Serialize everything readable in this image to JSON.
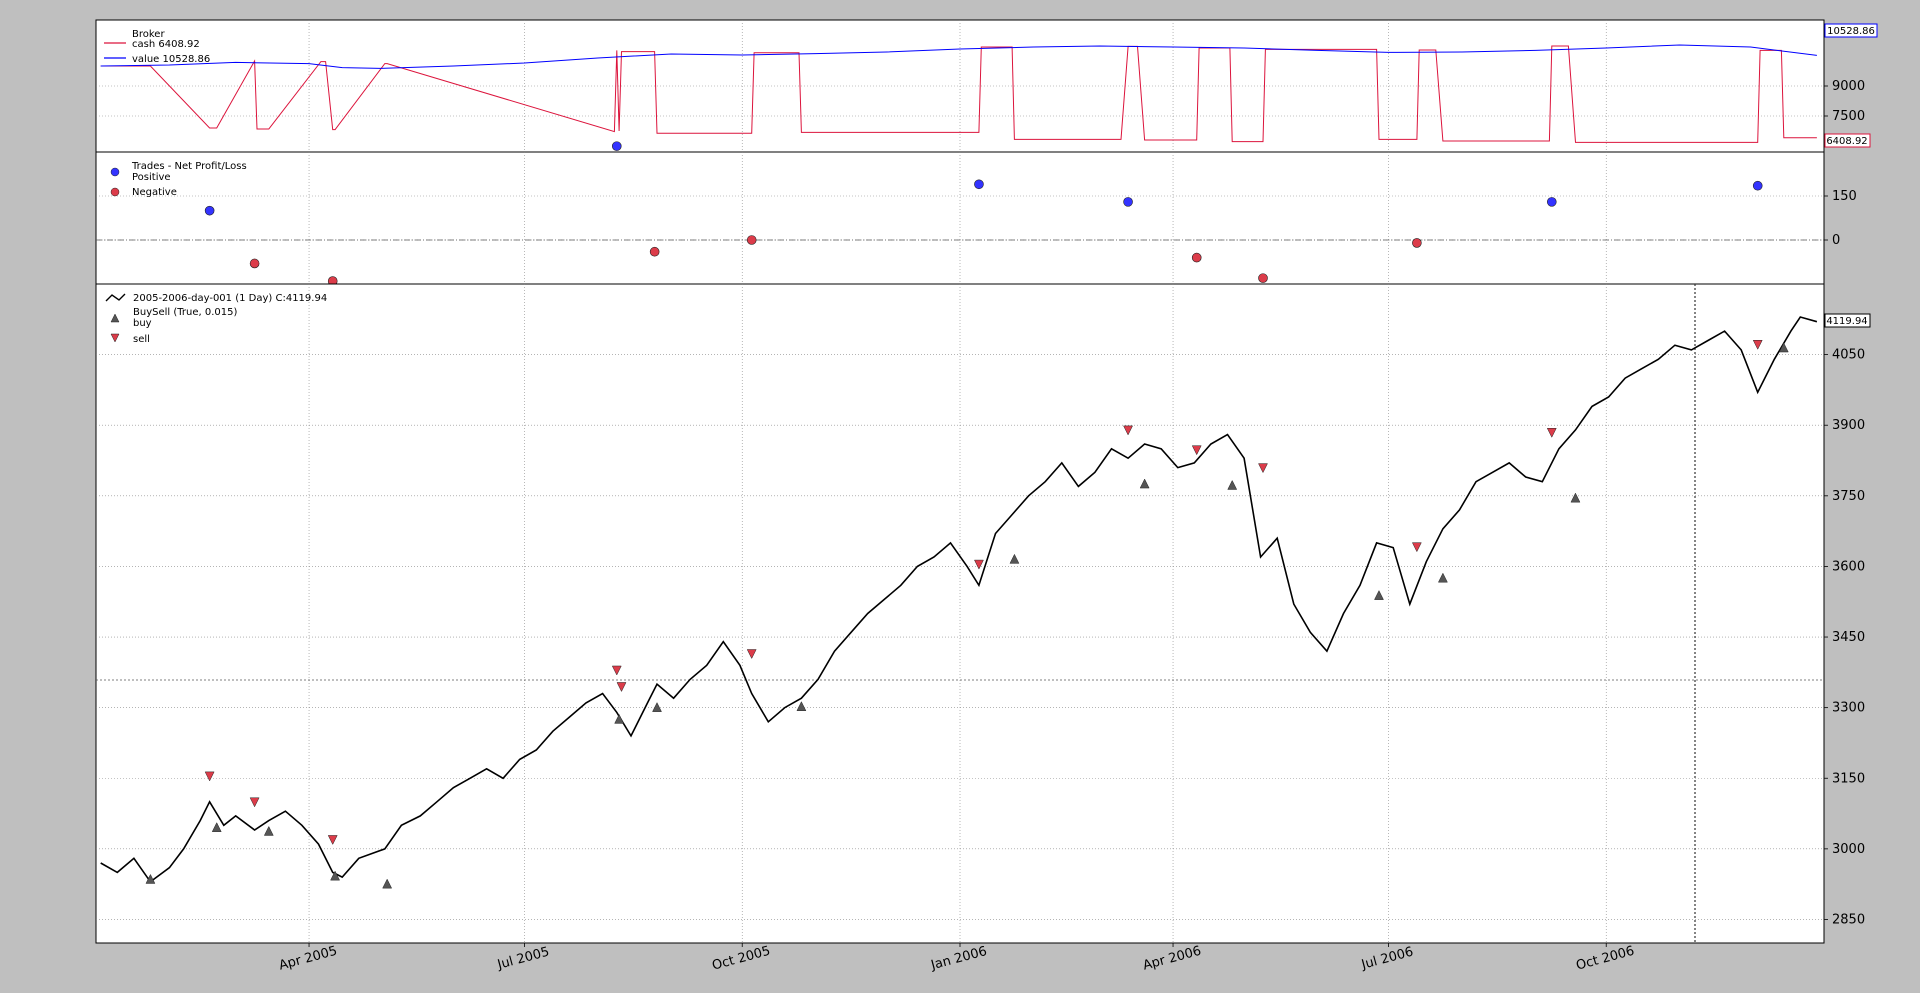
{
  "chart_data": [
    {
      "type": "line",
      "panel": "broker",
      "legend_title": "Broker",
      "series": [
        {
          "name": "cash 6408.92",
          "color": "#dc143c",
          "x": [
            "2005-01-03",
            "2005-01-24",
            "2005-02-18",
            "2005-02-21",
            "2005-03-09",
            "2005-03-10",
            "2005-03-15",
            "2005-04-06",
            "2005-04-08",
            "2005-04-11",
            "2005-04-12",
            "2005-05-03",
            "2005-05-04",
            "2005-08-08",
            "2005-08-09",
            "2005-08-10",
            "2005-08-11",
            "2005-08-25",
            "2005-08-26",
            "2005-10-05",
            "2005-10-06",
            "2005-10-25",
            "2005-10-26",
            "2006-01-09",
            "2006-01-10",
            "2006-01-23",
            "2006-01-24",
            "2006-03-10",
            "2006-03-13",
            "2006-03-17",
            "2006-03-20",
            "2006-04-11",
            "2006-04-12",
            "2006-04-25",
            "2006-04-26",
            "2006-05-09",
            "2006-05-10",
            "2006-06-26",
            "2006-06-27",
            "2006-07-13",
            "2006-07-14",
            "2006-07-21",
            "2006-07-24",
            "2006-09-07",
            "2006-09-08",
            "2006-09-15",
            "2006-09-18",
            "2006-12-04",
            "2006-12-05",
            "2006-12-14",
            "2006-12-15",
            "2006-12-29"
          ],
          "y": [
            10000,
            10000,
            6900,
            6900,
            10250,
            6850,
            6850,
            10220,
            10220,
            6820,
            6820,
            10120,
            10120,
            6720,
            10780,
            6750,
            10720,
            10720,
            6640,
            6640,
            10660,
            10660,
            6680,
            6680,
            10950,
            10950,
            6330,
            6330,
            10980,
            10980,
            6300,
            6300,
            10900,
            10900,
            6220,
            6220,
            10830,
            10830,
            6330,
            6330,
            10800,
            10800,
            6250,
            6250,
            11000,
            11000,
            6180,
            6180,
            10780,
            10780,
            6408.92,
            6408.92
          ]
        },
        {
          "name": "value 10528.86",
          "color": "#0000ff",
          "x": [
            "2005-01-03",
            "2005-02-01",
            "2005-03-01",
            "2005-04-01",
            "2005-04-15",
            "2005-05-01",
            "2005-06-01",
            "2005-07-01",
            "2005-08-01",
            "2005-09-01",
            "2005-10-01",
            "2005-11-01",
            "2005-12-01",
            "2006-01-01",
            "2006-02-01",
            "2006-03-01",
            "2006-04-01",
            "2006-05-01",
            "2006-06-01",
            "2006-07-01",
            "2006-08-01",
            "2006-09-01",
            "2006-10-01",
            "2006-11-01",
            "2006-12-01",
            "2006-12-29"
          ],
          "y": [
            10000,
            10050,
            10180,
            10120,
            9920,
            9880,
            10000,
            10150,
            10400,
            10600,
            10550,
            10620,
            10700,
            10850,
            10950,
            11000,
            10950,
            10900,
            10780,
            10680,
            10700,
            10780,
            10900,
            11050,
            10950,
            10528.86
          ]
        }
      ],
      "ylim": [
        5700,
        12300
      ],
      "yticks": [
        7500,
        9000
      ],
      "end_labels": [
        "10528.86",
        "6408.92"
      ]
    },
    {
      "type": "scatter",
      "panel": "trades",
      "legend_title": "Trades - Net Profit/Loss",
      "series": [
        {
          "name": "Positive",
          "color": "#3333ff",
          "x": [
            "2005-02-18",
            "2005-08-09",
            "2006-01-09",
            "2006-03-13",
            "2006-09-08",
            "2006-12-04"
          ],
          "y": [
            100,
            320,
            190,
            130,
            130,
            185
          ]
        },
        {
          "name": "Negative",
          "color": "#dc3c4a",
          "x": [
            "2005-03-09",
            "2005-04-11",
            "2005-08-25",
            "2005-10-05",
            "2006-04-11",
            "2006-05-09",
            "2006-07-13"
          ],
          "y": [
            -80,
            -140,
            -40,
            0,
            -60,
            -130,
            -10
          ]
        }
      ],
      "ylim": [
        -150,
        300
      ],
      "yticks": [
        0,
        150
      ]
    },
    {
      "type": "line",
      "panel": "price",
      "series": [
        {
          "name": "2005-2006-day-001 (1 Day) C:4119.94",
          "color": "#000000",
          "x": [
            "2005-01-03",
            "2005-01-10",
            "2005-01-17",
            "2005-01-24",
            "2005-02-01",
            "2005-02-07",
            "2005-02-14",
            "2005-02-18",
            "2005-02-24",
            "2005-03-01",
            "2005-03-09",
            "2005-03-15",
            "2005-03-22",
            "2005-03-29",
            "2005-04-05",
            "2005-04-11",
            "2005-04-15",
            "2005-04-22",
            "2005-05-03",
            "2005-05-10",
            "2005-05-18",
            "2005-05-25",
            "2005-06-01",
            "2005-06-08",
            "2005-06-15",
            "2005-06-22",
            "2005-06-29",
            "2005-07-06",
            "2005-07-13",
            "2005-07-20",
            "2005-07-27",
            "2005-08-03",
            "2005-08-09",
            "2005-08-15",
            "2005-08-22",
            "2005-08-26",
            "2005-09-02",
            "2005-09-09",
            "2005-09-16",
            "2005-09-23",
            "2005-09-30",
            "2005-10-05",
            "2005-10-12",
            "2005-10-19",
            "2005-10-26",
            "2005-11-02",
            "2005-11-09",
            "2005-11-16",
            "2005-11-23",
            "2005-11-30",
            "2005-12-07",
            "2005-12-14",
            "2005-12-21",
            "2005-12-28",
            "2006-01-04",
            "2006-01-09",
            "2006-01-16",
            "2006-01-23",
            "2006-01-30",
            "2006-02-06",
            "2006-02-13",
            "2006-02-20",
            "2006-02-27",
            "2006-03-06",
            "2006-03-13",
            "2006-03-20",
            "2006-03-27",
            "2006-04-03",
            "2006-04-10",
            "2006-04-17",
            "2006-04-24",
            "2006-05-01",
            "2006-05-08",
            "2006-05-15",
            "2006-05-22",
            "2006-05-29",
            "2006-06-05",
            "2006-06-12",
            "2006-06-19",
            "2006-06-26",
            "2006-07-03",
            "2006-07-10",
            "2006-07-17",
            "2006-07-24",
            "2006-07-31",
            "2006-08-07",
            "2006-08-14",
            "2006-08-21",
            "2006-08-28",
            "2006-09-04",
            "2006-09-11",
            "2006-09-18",
            "2006-09-25",
            "2006-10-02",
            "2006-10-09",
            "2006-10-16",
            "2006-10-23",
            "2006-10-30",
            "2006-11-06",
            "2006-11-13",
            "2006-11-20",
            "2006-11-27",
            "2006-12-04",
            "2006-12-11",
            "2006-12-18",
            "2006-12-22",
            "2006-12-29"
          ],
          "y": [
            2970,
            2950,
            2980,
            2930,
            2960,
            3000,
            3060,
            3100,
            3050,
            3070,
            3040,
            3060,
            3080,
            3050,
            3010,
            2950,
            2940,
            2980,
            3000,
            3050,
            3070,
            3100,
            3130,
            3150,
            3170,
            3150,
            3190,
            3210,
            3250,
            3280,
            3310,
            3330,
            3290,
            3240,
            3310,
            3350,
            3320,
            3360,
            3390,
            3440,
            3390,
            3330,
            3270,
            3300,
            3320,
            3360,
            3420,
            3460,
            3500,
            3530,
            3560,
            3600,
            3620,
            3650,
            3600,
            3560,
            3670,
            3710,
            3750,
            3780,
            3820,
            3770,
            3800,
            3850,
            3830,
            3860,
            3850,
            3810,
            3820,
            3860,
            3880,
            3830,
            3620,
            3660,
            3520,
            3460,
            3420,
            3500,
            3560,
            3650,
            3640,
            3520,
            3610,
            3680,
            3720,
            3780,
            3800,
            3820,
            3790,
            3780,
            3850,
            3890,
            3940,
            3960,
            4000,
            4020,
            4040,
            4070,
            4060,
            4080,
            4100,
            4060,
            3970,
            4040,
            4100,
            4130,
            4119.94
          ]
        },
        {
          "name": "buy",
          "color": "#555555",
          "marker": "triangle-up",
          "x": [
            "2005-01-24",
            "2005-02-21",
            "2005-03-15",
            "2005-04-12",
            "2005-05-04",
            "2005-08-10",
            "2005-08-26",
            "2005-10-26",
            "2006-01-24",
            "2006-03-20",
            "2006-04-26",
            "2006-06-27",
            "2006-07-24",
            "2006-09-18",
            "2006-12-15"
          ],
          "y": [
            2935,
            3045,
            3037,
            2942,
            2925,
            3275,
            3300,
            3302,
            3615,
            3775,
            3772,
            3538,
            3575,
            3745,
            4064
          ]
        },
        {
          "name": "sell",
          "color": "#dc3c4a",
          "marker": "triangle-down",
          "x": [
            "2005-02-18",
            "2005-03-09",
            "2005-04-11",
            "2005-08-09",
            "2005-08-11",
            "2005-10-05",
            "2006-01-09",
            "2006-03-13",
            "2006-04-11",
            "2006-05-09",
            "2006-07-13",
            "2006-09-08",
            "2006-12-04"
          ],
          "y": [
            3155,
            3100,
            3020,
            3380,
            3345,
            3415,
            3605,
            3890,
            3848,
            3810,
            3642,
            3885,
            4072
          ]
        }
      ],
      "legend_extra": "BuySell (True, 0.015)",
      "ylim": [
        2800,
        4200
      ],
      "yticks": [
        2850,
        3000,
        3150,
        3300,
        3450,
        3600,
        3750,
        3900,
        4050
      ],
      "end_label": "4119.94",
      "xlim": [
        "2005-01-01",
        "2007-01-01"
      ],
      "xticks": [
        {
          "date": "2005-04-01",
          "label": "Apr 2005"
        },
        {
          "date": "2005-07-01",
          "label": "Jul 2005"
        },
        {
          "date": "2005-10-01",
          "label": "Oct 2005"
        },
        {
          "date": "2006-01-01",
          "label": "Jan 2006"
        },
        {
          "date": "2006-04-01",
          "label": "Apr 2006"
        },
        {
          "date": "2006-07-01",
          "label": "Jul 2006"
        },
        {
          "date": "2006-10-01",
          "label": "Oct 2006"
        }
      ]
    }
  ]
}
